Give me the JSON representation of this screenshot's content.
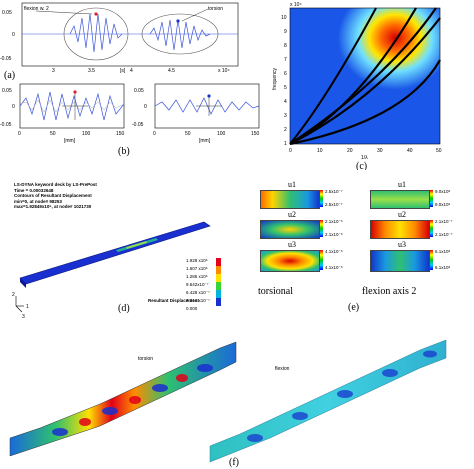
{
  "panel_a": {
    "label": "(a)",
    "annotations": {
      "left": "flexion w. 2",
      "right": "torsion"
    },
    "y_ticks": [
      "0.05",
      "0",
      "-0.05"
    ],
    "x_ticks": [
      "3",
      "3.5",
      "4",
      "4.5"
    ],
    "x_unit": "[s]",
    "x_exponent": "x 10⁴"
  },
  "panel_b": {
    "label": "(b)",
    "left": {
      "y_ticks": [
        "0.05",
        "0",
        "-0.05"
      ],
      "x_ticks": [
        "0",
        "50",
        "100",
        "150"
      ],
      "x_unit": "[mm]"
    },
    "right": {
      "y_ticks": [
        "0.05",
        "0",
        "-0.05"
      ],
      "x_ticks": [
        "0",
        "50",
        "100",
        "150"
      ],
      "x_unit": "[mm]"
    }
  },
  "panel_c": {
    "label": "(c)",
    "ylabel": "frequency",
    "xlabel": "1/λ",
    "y_exponent": "x 10⁴",
    "y_ticks": [
      "1",
      "2",
      "3",
      "4",
      "5",
      "6",
      "7",
      "8",
      "9",
      "10"
    ],
    "x_ticks": [
      "0",
      "10",
      "20",
      "30",
      "40",
      "50"
    ]
  },
  "panel_d": {
    "label": "(d)",
    "header": [
      "LS-DYNA keyword deck by LS-PrePost",
      "Time =   0.00032648",
      "Contours of Resultant Displacement",
      "min=0, at node# 98253",
      "max=1.92849x10⁶, at node# 1021730"
    ],
    "colorbar_values": [
      "1.928 x10⁶",
      "1.607 x10⁶",
      "1.286 x10⁶",
      "9.642x10⁻⁷",
      "6.428 x10⁻⁷",
      "3.214 x10⁻⁷",
      "0.000"
    ],
    "colorbar_title": "Resultant Displacement",
    "axes": {
      "y": "2",
      "z": "3",
      "x": "1"
    }
  },
  "panel_e": {
    "label": "(e)",
    "torsional_label": "torsional",
    "flexion_label": "flexion axis 2",
    "components": [
      "u1",
      "u2",
      "u3",
      "u1",
      "u2",
      "u3"
    ],
    "torsional_scales": [
      {
        "top": "2.5x10⁻⁷",
        "bottom": "2.5x10⁻⁷"
      },
      {
        "top": "2.1x10⁻⁶",
        "bottom": "2.1x10⁻⁶"
      },
      {
        "top": "4.1x10⁻⁶",
        "bottom": "4.1x10⁻⁶"
      }
    ],
    "flexion_scales": [
      {
        "top": "9.0x10⁶",
        "bottom": "9.0x10⁶"
      },
      {
        "top": "2.1x10⁻⁷",
        "bottom": "2.1x10⁻⁷"
      },
      {
        "top": "6.1x10⁶",
        "bottom": "6.1x10⁶"
      }
    ]
  },
  "panel_f": {
    "label": "(f)",
    "torsion_text": "torsion",
    "flexion_text": "flexion"
  }
}
